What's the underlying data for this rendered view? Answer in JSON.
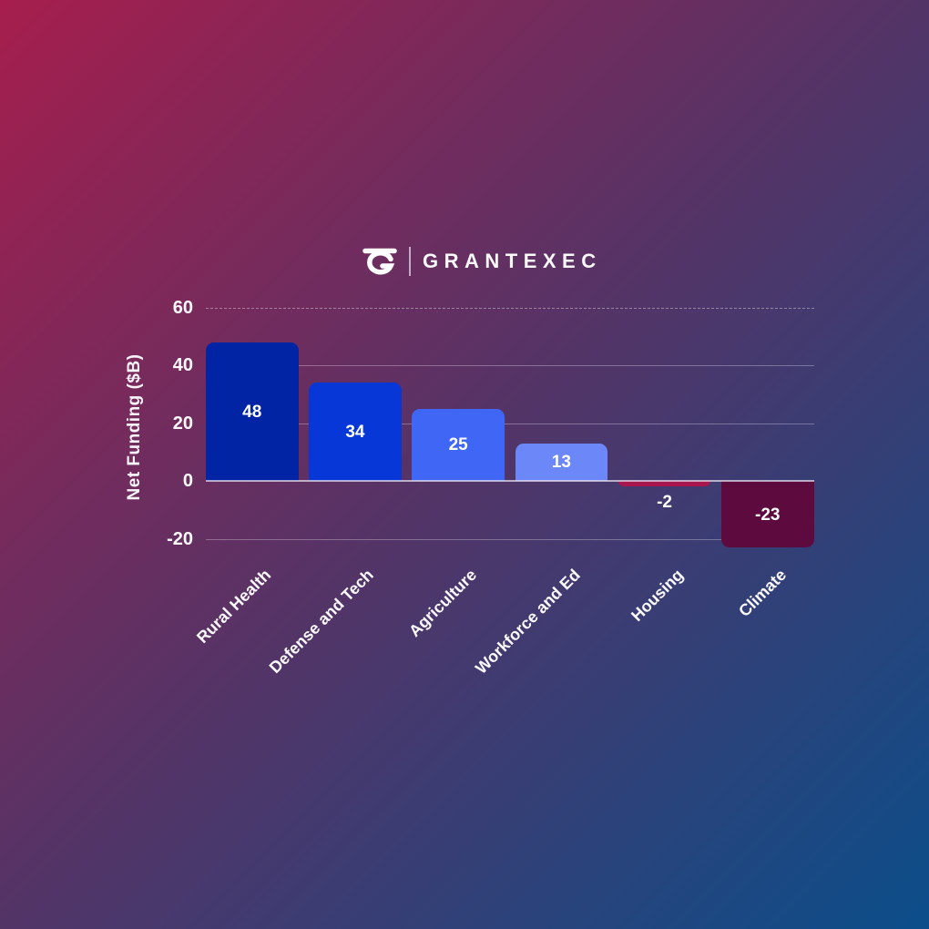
{
  "logo": {
    "brand": "GRANTEXEC",
    "icon": "grantexec-g-logo"
  },
  "chart_data": {
    "type": "bar",
    "categories": [
      "Rural Health",
      "Defense and Tech",
      "Agriculture",
      "Workforce and Ed",
      "Housing",
      "Climate"
    ],
    "values": [
      48,
      34,
      25,
      13,
      -2,
      -23
    ],
    "bar_colors": [
      "#0124a4",
      "#0837d8",
      "#4066f6",
      "#6c88f8",
      "#a9164e",
      "#5d0a3e"
    ],
    "title": "",
    "xlabel": "",
    "ylabel": "Net Funding ($B)",
    "yticks": [
      60,
      40,
      20,
      0,
      -20
    ],
    "ylim": [
      -30,
      62
    ],
    "grid": "horizontal, line at 60 dashed, emphasized zero line",
    "legend": "none",
    "value_label_color": "#ffffff",
    "tick_label_color": "#fbf9fc",
    "background_gradient": [
      "#a61e4d",
      "#533467",
      "#0b4e8a"
    ]
  }
}
